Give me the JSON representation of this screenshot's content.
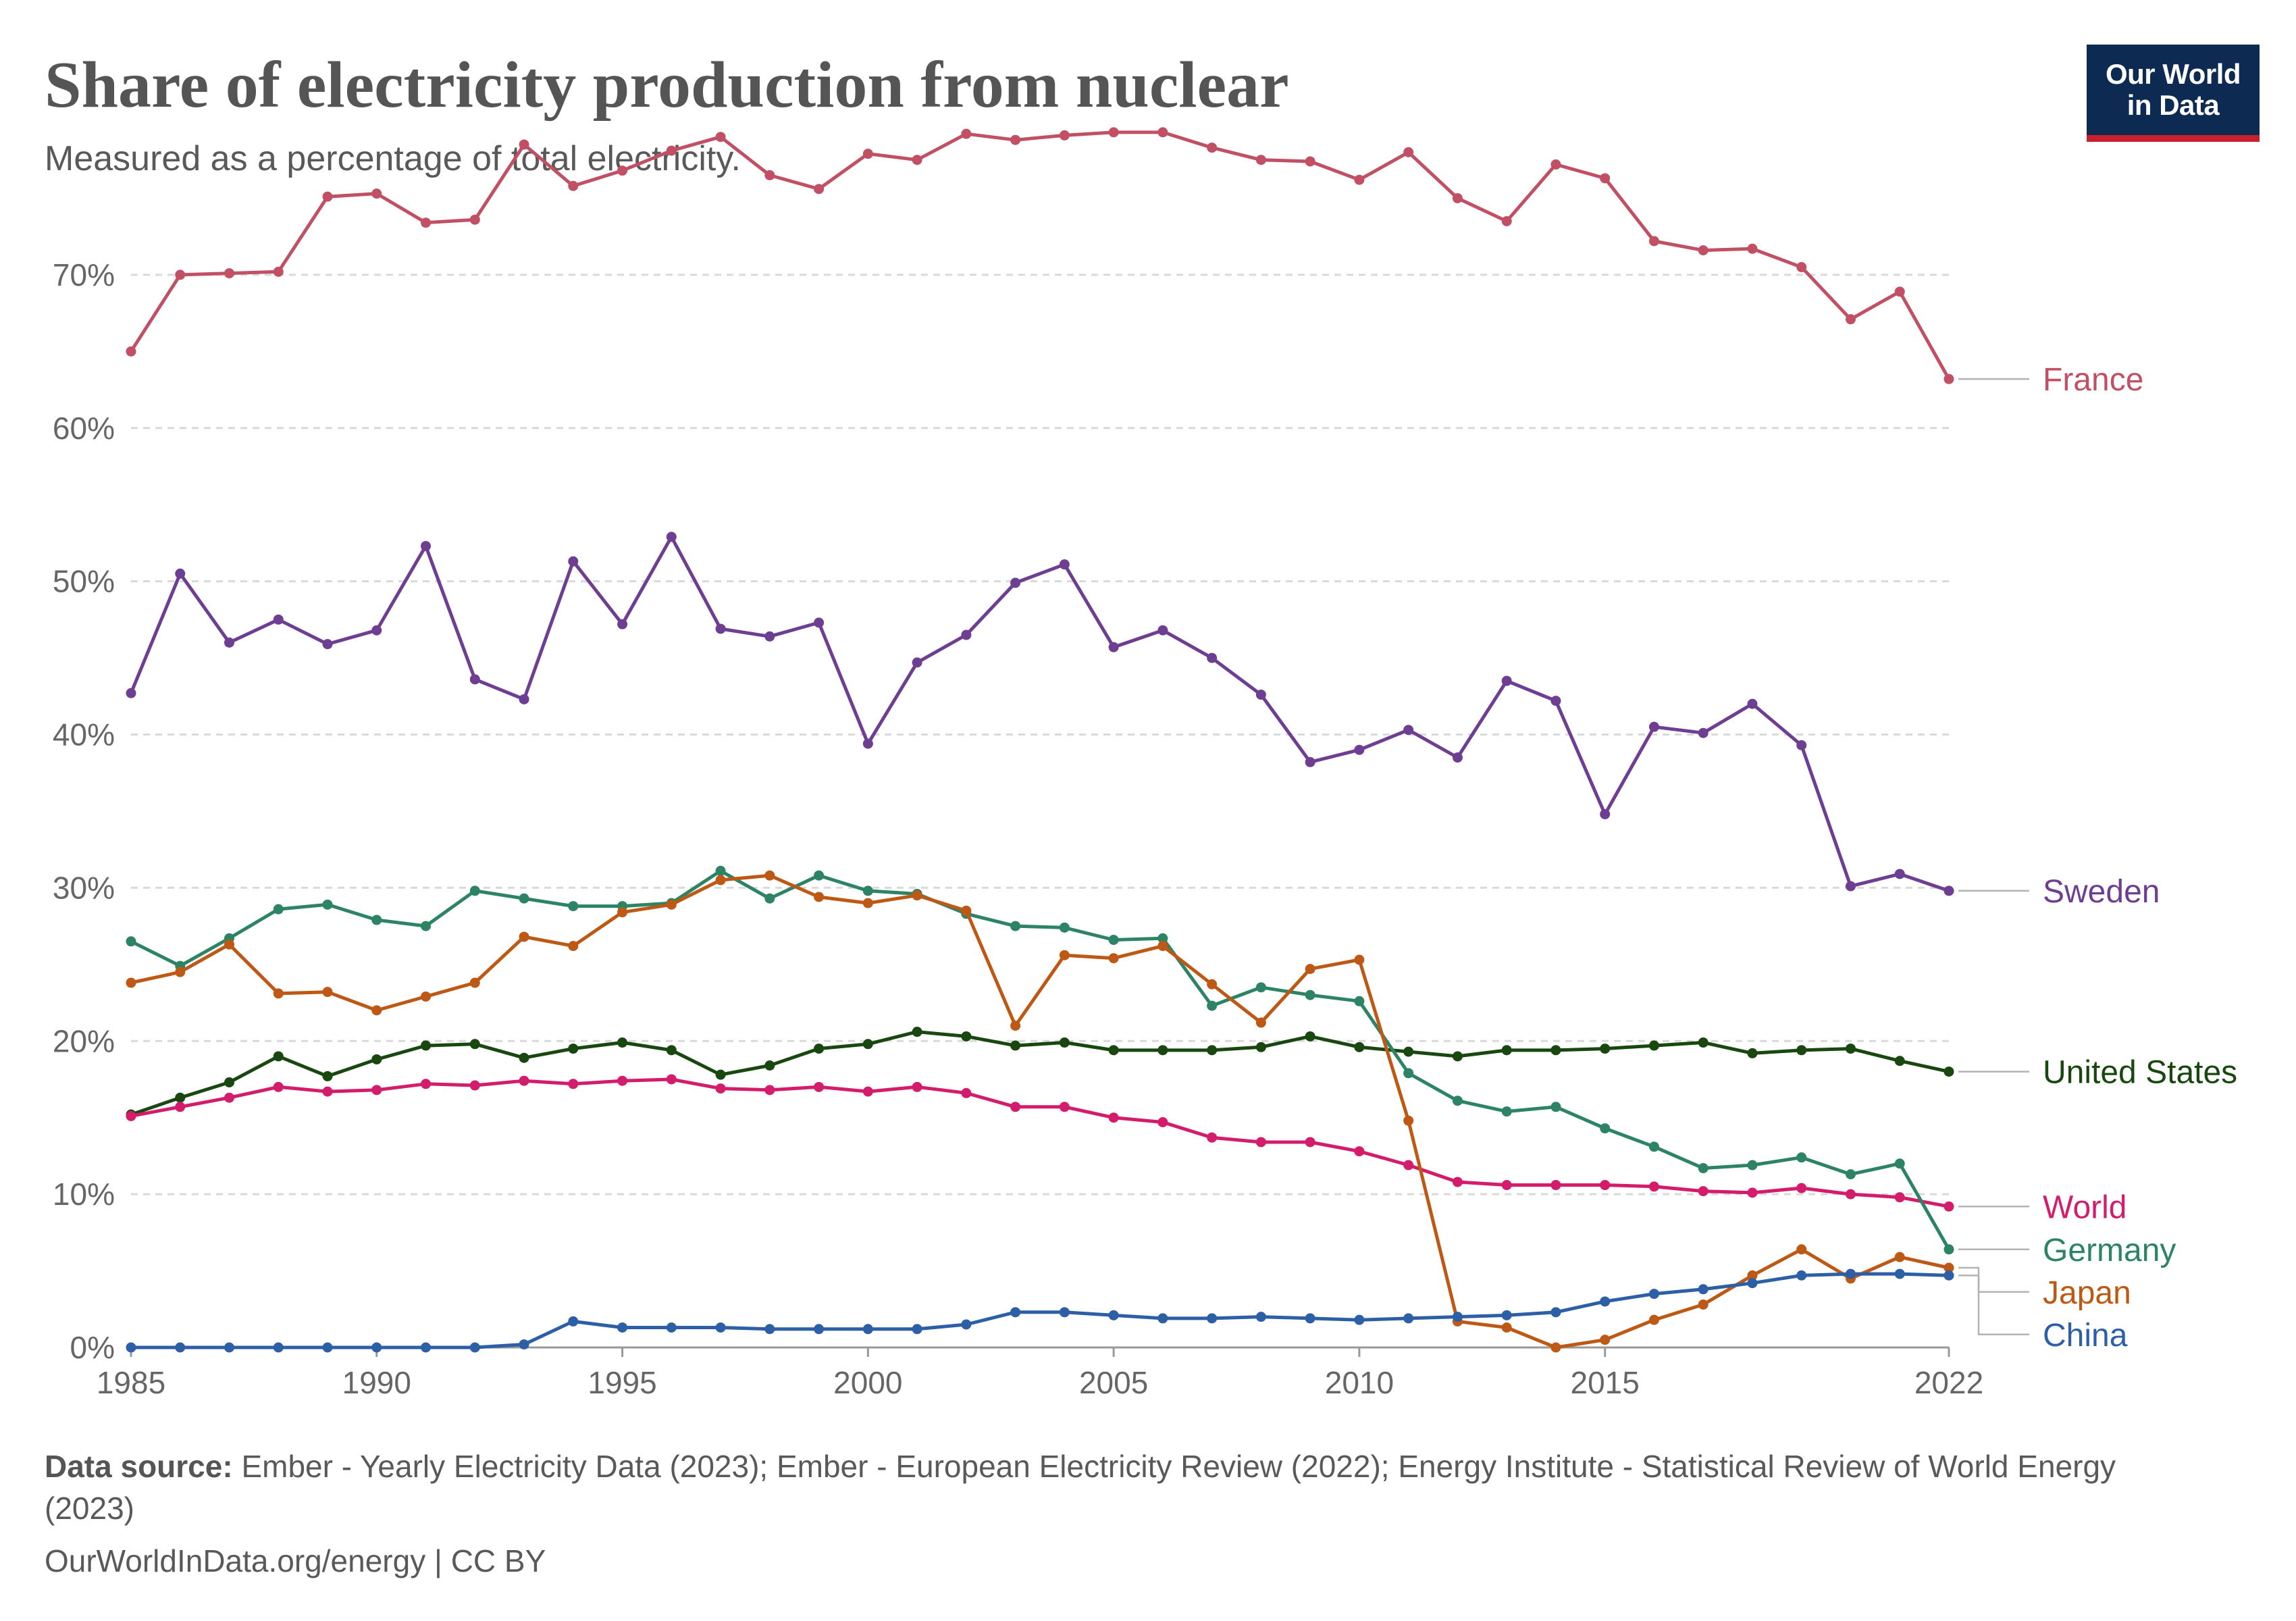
{
  "title": "Share of electricity production from nuclear",
  "subtitle": "Measured as a percentage of total electricity.",
  "logo": {
    "line1": "Our World",
    "line2": "in Data"
  },
  "footer": {
    "source_label": "Data source:",
    "source_text": "Ember - Yearly Electricity Data (2023); Ember - European Electricity Review (2022); Energy Institute - Statistical Review of World Energy (2023)",
    "credits": "OurWorldInData.org/energy | CC BY"
  },
  "chart_data": {
    "type": "line",
    "title": "Share of electricity production from nuclear",
    "subtitle": "Measured as a percentage of total electricity.",
    "xlabel": "",
    "ylabel": "",
    "x": [
      1985,
      1986,
      1987,
      1988,
      1989,
      1990,
      1991,
      1992,
      1993,
      1994,
      1995,
      1996,
      1997,
      1998,
      1999,
      2000,
      2001,
      2002,
      2003,
      2004,
      2005,
      2006,
      2007,
      2008,
      2009,
      2010,
      2011,
      2012,
      2013,
      2014,
      2015,
      2016,
      2017,
      2018,
      2019,
      2020,
      2021,
      2022
    ],
    "xlim": [
      1985,
      2022
    ],
    "ylim": [
      0,
      80
    ],
    "x_ticks": [
      1985,
      1990,
      1995,
      2000,
      2005,
      2010,
      2015,
      2022
    ],
    "x_tick_labels": [
      "1985",
      "1990",
      "1995",
      "2000",
      "2005",
      "2010",
      "2015",
      "2022"
    ],
    "y_ticks": [
      0,
      10,
      20,
      30,
      40,
      50,
      60,
      70
    ],
    "y_tick_labels": [
      "0%",
      "10%",
      "20%",
      "30%",
      "40%",
      "50%",
      "60%",
      "70%"
    ],
    "grid": "horizontal dashed",
    "legend": "end-of-line labels on the right",
    "series": [
      {
        "name": "France",
        "color": "#c15065",
        "values": [
          65.0,
          70.0,
          70.1,
          70.2,
          75.1,
          75.3,
          73.4,
          73.6,
          78.5,
          75.8,
          76.8,
          78.1,
          79.0,
          76.5,
          75.6,
          77.9,
          77.5,
          79.2,
          78.8,
          79.1,
          79.3,
          79.3,
          78.3,
          77.5,
          77.4,
          76.2,
          78.0,
          75.0,
          73.5,
          77.2,
          76.3,
          72.2,
          71.6,
          71.7,
          70.5,
          67.1,
          68.9,
          63.2
        ]
      },
      {
        "name": "Sweden",
        "color": "#6d3e91",
        "values": [
          42.7,
          50.5,
          46.0,
          47.5,
          45.9,
          46.8,
          52.3,
          43.6,
          42.3,
          51.3,
          47.2,
          52.9,
          46.9,
          46.4,
          47.3,
          39.4,
          44.7,
          46.5,
          49.9,
          51.1,
          45.7,
          46.8,
          45.0,
          42.6,
          38.2,
          39.0,
          40.3,
          38.5,
          43.5,
          42.2,
          34.8,
          40.5,
          40.1,
          42.0,
          39.3,
          30.1,
          30.9,
          29.8
        ]
      },
      {
        "name": "United States",
        "color": "#18470f",
        "values": [
          15.2,
          16.3,
          17.3,
          19.0,
          17.7,
          18.8,
          19.7,
          19.8,
          18.9,
          19.5,
          19.9,
          19.4,
          17.8,
          18.4,
          19.5,
          19.8,
          20.6,
          20.3,
          19.7,
          19.9,
          19.4,
          19.4,
          19.4,
          19.6,
          20.3,
          19.6,
          19.3,
          19.0,
          19.4,
          19.4,
          19.5,
          19.7,
          19.9,
          19.2,
          19.4,
          19.5,
          18.7,
          18.0
        ]
      },
      {
        "name": "World",
        "color": "#d31c6b",
        "values": [
          15.1,
          15.7,
          16.3,
          17.0,
          16.7,
          16.8,
          17.2,
          17.1,
          17.4,
          17.2,
          17.4,
          17.5,
          16.9,
          16.8,
          17.0,
          16.7,
          17.0,
          16.6,
          15.7,
          15.7,
          15.0,
          14.7,
          13.7,
          13.4,
          13.4,
          12.8,
          11.9,
          10.8,
          10.6,
          10.6,
          10.6,
          10.5,
          10.2,
          10.1,
          10.4,
          10.0,
          9.8,
          9.2
        ]
      },
      {
        "name": "Germany",
        "color": "#2c8465",
        "values": [
          26.5,
          24.9,
          26.7,
          28.6,
          28.9,
          27.9,
          27.5,
          29.8,
          29.3,
          28.8,
          28.8,
          29.0,
          31.1,
          29.3,
          30.8,
          29.8,
          29.6,
          28.3,
          27.5,
          27.4,
          26.6,
          26.7,
          22.3,
          23.5,
          23.0,
          22.6,
          17.9,
          16.1,
          15.4,
          15.7,
          14.3,
          13.1,
          11.7,
          11.9,
          12.4,
          11.3,
          12.0,
          6.4
        ]
      },
      {
        "name": "Japan",
        "color": "#be5915",
        "values": [
          23.8,
          24.5,
          26.3,
          23.1,
          23.2,
          22.0,
          22.9,
          23.8,
          26.8,
          26.2,
          28.4,
          28.9,
          30.5,
          30.8,
          29.4,
          29.0,
          29.5,
          28.5,
          21.0,
          25.6,
          25.4,
          26.2,
          23.7,
          21.2,
          24.7,
          25.3,
          14.8,
          1.7,
          1.3,
          0.0,
          0.5,
          1.8,
          2.8,
          4.7,
          6.4,
          4.5,
          5.9,
          5.2
        ]
      },
      {
        "name": "China",
        "color": "#2c5fa5",
        "values": [
          0.0,
          0.0,
          0.0,
          0.0,
          0.0,
          0.0,
          0.0,
          0.0,
          0.2,
          1.7,
          1.3,
          1.3,
          1.3,
          1.2,
          1.2,
          1.2,
          1.2,
          1.5,
          2.3,
          2.3,
          2.1,
          1.9,
          1.9,
          2.0,
          1.9,
          1.8,
          1.9,
          2.0,
          2.1,
          2.3,
          3.0,
          3.5,
          3.8,
          4.2,
          4.7,
          4.8,
          4.8,
          4.7
        ]
      }
    ]
  }
}
